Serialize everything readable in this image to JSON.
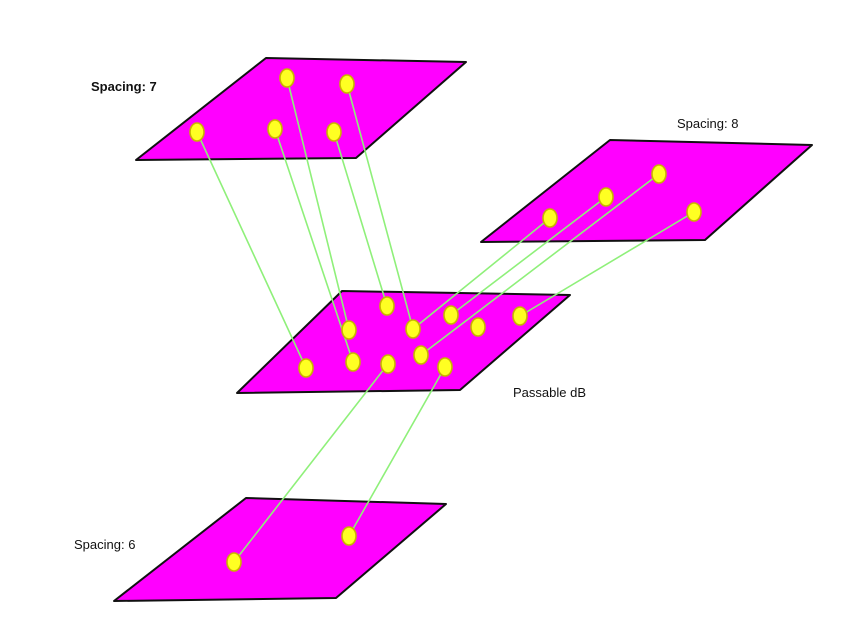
{
  "colors": {
    "plane_fill": "#ff00ff",
    "plane_stroke": "#111111",
    "node_fill": "#ffff22",
    "node_stroke": "#c8b400",
    "link": "#8ff07a"
  },
  "labels": {
    "spacing_7": "Spacing: 7",
    "spacing_8": "Spacing: 8",
    "passable": "Passable dB",
    "spacing_6": "Spacing: 6"
  },
  "planes": [
    {
      "id": "spacing-7",
      "nodes": 5
    },
    {
      "id": "spacing-8",
      "nodes": 4
    },
    {
      "id": "passable-db",
      "nodes": 11
    },
    {
      "id": "spacing-6",
      "nodes": 2
    }
  ]
}
